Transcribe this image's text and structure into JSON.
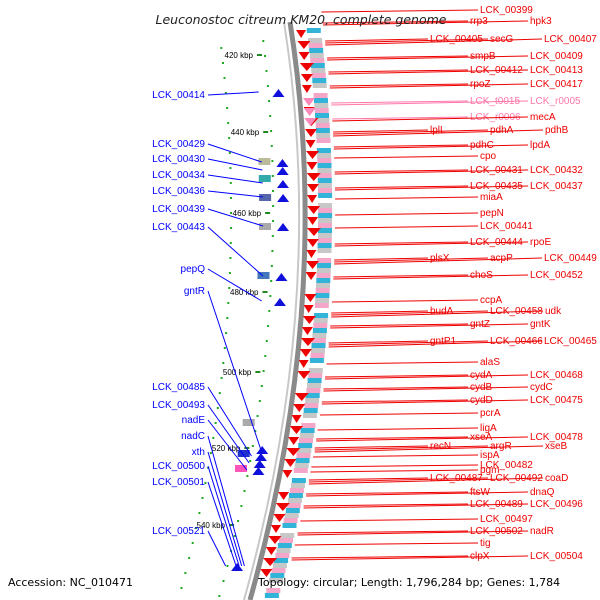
{
  "title": "Leuconostoc citreum KM20, complete genome",
  "footer": {
    "accession": "Accession: NC_010471",
    "topology": "Topology: circular; Length: 1,796,284 bp; Genes: 1,784"
  },
  "colors": {
    "forward": "#ee0000",
    "reverse": "#1010dd",
    "rna": "#ff88bb",
    "backbone": "#888888",
    "tick": "#228822",
    "dots": "#22aa22"
  },
  "ticks": [
    "420 kbp",
    "440 kbp",
    "460 kbp",
    "480 kbp",
    "500 kbp",
    "520 kbp",
    "540 kbp"
  ],
  "left_labels": [
    "LCK_00414",
    "LCK_00429",
    "LCK_00430",
    "LCK_00434",
    "LCK_00436",
    "LCK_00439",
    "LCK_00443",
    "pepQ",
    "gntR",
    "LCK_00485",
    "LCK_00493",
    "nadE",
    "nadC",
    "xth",
    "LCK_00500",
    "LCK_00501",
    "LCK_00521"
  ],
  "right_labels": [
    "LCK_00399",
    "rrp3",
    "hpk3",
    "LCK_00405",
    "secG",
    "LCK_00407",
    "smpB",
    "LCK_00409",
    "LCK_00412",
    "LCK_00413",
    "rpoZ",
    "LCK_00417",
    "LCK_t0015",
    "LCK_r0005",
    "LCK_r0006",
    "mecA",
    "lplL",
    "pdhA",
    "pdhB",
    "pdhC",
    "lpdA",
    "cpo",
    "LCK_00431",
    "LCK_00432",
    "LCK_00435",
    "LCK_00437",
    "miaA",
    "pepN",
    "LCK_00441",
    "LCK_00444",
    "rpoE",
    "plsX",
    "acpP",
    "LCK_00449",
    "choS",
    "LCK_00452",
    "ccpA",
    "budA",
    "LCK_00458",
    "udk",
    "gntZ",
    "gntK",
    "gntP1",
    "LCK_00466",
    "LCK_00465",
    "alaS",
    "cydA",
    "LCK_00468",
    "cydB",
    "cydC",
    "cydD",
    "LCK_00475",
    "pcrA",
    "ligA",
    "xseA",
    "LCK_00478",
    "recN",
    "argR",
    "xseB",
    "ispA",
    "LCK_00482",
    "pgm",
    "LCK_00487",
    "LCK_00492",
    "coaD",
    "ftsW",
    "dnaQ",
    "LCK_00489",
    "LCK_00496",
    "LCK_00497",
    "LCK_00502",
    "nadR",
    "tig",
    "clpX",
    "LCK_00504"
  ]
}
